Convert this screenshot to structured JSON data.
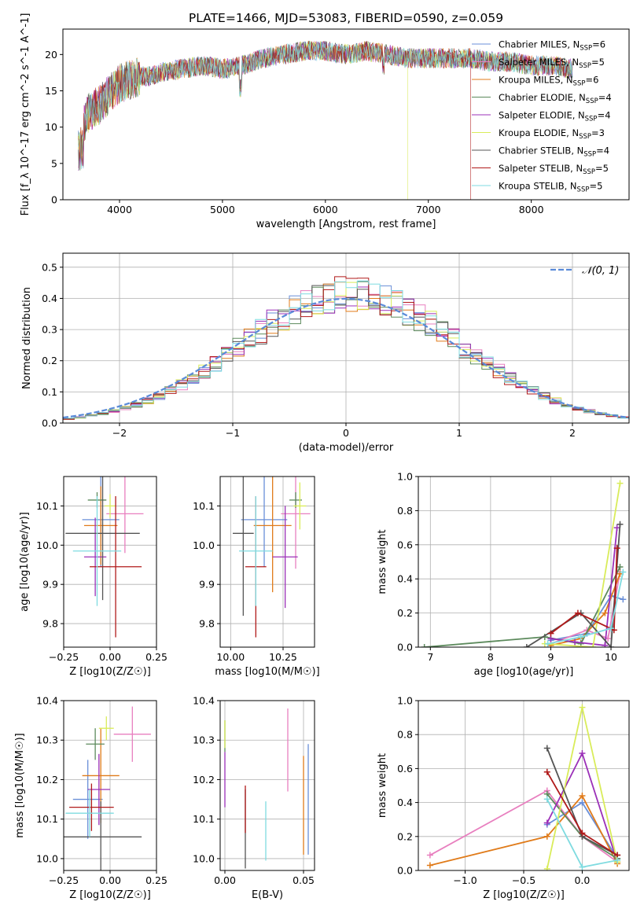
{
  "page_title": "PLATE=1466, MJD=53083, FIBERID=0590, z=0.059",
  "colors": {
    "Chabrier MILES": "#6a8fd8",
    "Salpeter MILES": "#e87fbf",
    "Kroupa MILES": "#e07b1a",
    "Chabrier ELODIE": "#5c8a5c",
    "Salpeter ELODIE": "#9b30b8",
    "Kroupa ELODIE": "#d9ec5a",
    "Chabrier STELIB": "#555555",
    "Salpeter STELIB": "#b01a1a",
    "Kroupa STELIB": "#7fdbe0"
  },
  "chart_data": [
    {
      "id": "spectrum",
      "type": "line",
      "title": "PLATE=1466, MJD=53083, FIBERID=0590, z=0.059",
      "xlabel": "wavelength [Angstrom, rest frame]",
      "ylabel": "Flux [f_λ 10^-17 erg cm^-2 s^-1 A^-1]",
      "xlim": [
        3450,
        8950
      ],
      "ylim": [
        0,
        23.5
      ],
      "xticks": [
        4000,
        5000,
        6000,
        7000,
        8000
      ],
      "yticks": [
        0,
        5,
        10,
        15,
        20
      ],
      "legend_position": "right",
      "legend": [
        {
          "label": "Chabrier MILES, N",
          "sub": "SSP",
          "suffix": "=6"
        },
        {
          "label": "Salpeter MILES, N",
          "sub": "SSP",
          "suffix": "=5"
        },
        {
          "label": "Kroupa MILES, N",
          "sub": "SSP",
          "suffix": "=6"
        },
        {
          "label": "Chabrier ELODIE, N",
          "sub": "SSP",
          "suffix": "=4"
        },
        {
          "label": "Salpeter ELODIE, N",
          "sub": "SSP",
          "suffix": "=4"
        },
        {
          "label": "Kroupa ELODIE, N",
          "sub": "SSP",
          "suffix": "=3"
        },
        {
          "label": "Chabrier STELIB, N",
          "sub": "SSP",
          "suffix": "=4"
        },
        {
          "label": "Salpeter STELIB, N",
          "sub": "SSP",
          "suffix": "=5"
        },
        {
          "label": "Kroupa STELIB, N",
          "sub": "SSP",
          "suffix": "=5"
        }
      ],
      "continuum": [
        [
          3600,
          9
        ],
        [
          3700,
          12
        ],
        [
          3800,
          13
        ],
        [
          3900,
          14.5
        ],
        [
          4000,
          16
        ],
        [
          4100,
          16.5
        ],
        [
          4200,
          17
        ],
        [
          4300,
          17
        ],
        [
          4400,
          17.5
        ],
        [
          4600,
          18
        ],
        [
          4800,
          18.5
        ],
        [
          5000,
          18
        ],
        [
          5200,
          18.5
        ],
        [
          5400,
          19.5
        ],
        [
          5600,
          20
        ],
        [
          5800,
          20.5
        ],
        [
          6000,
          20.5
        ],
        [
          6200,
          20
        ],
        [
          6400,
          20.5
        ],
        [
          6600,
          20
        ],
        [
          6800,
          19.5
        ],
        [
          7000,
          19.5
        ],
        [
          7200,
          19.5
        ],
        [
          7400,
          19.5
        ],
        [
          7600,
          19
        ],
        [
          7800,
          19
        ],
        [
          8000,
          18.5
        ],
        [
          8200,
          18.5
        ],
        [
          8400,
          18
        ]
      ]
    },
    {
      "id": "residuals",
      "type": "area",
      "xlabel": "(data-model)/error",
      "ylabel": "Normed distribution",
      "xlim": [
        -2.5,
        2.5
      ],
      "ylim": [
        0,
        0.545
      ],
      "xticks": [
        -2,
        -1,
        0,
        1,
        2
      ],
      "yticks": [
        0.0,
        0.1,
        0.2,
        0.3,
        0.4,
        0.5
      ],
      "grid": true,
      "legend": "𝒩(0, 1)",
      "legend_position": "top-right"
    },
    {
      "id": "age-vs-Z",
      "type": "scatter",
      "xlabel": "Z [log10(Z/Z☉)]",
      "ylabel": "age  [log10(age/yr)]",
      "xlim": [
        -0.25,
        0.25
      ],
      "ylim": [
        9.74,
        10.175
      ],
      "xticks": [
        -0.25,
        0.0,
        0.25
      ],
      "yticks": [
        9.8,
        9.9,
        10.0,
        10.1
      ],
      "grid": true,
      "points": [
        {
          "series": "Chabrier MILES",
          "x": -0.05,
          "y": 10.065,
          "xerr": 0.1,
          "yerr": 0.12
        },
        {
          "series": "Salpeter MILES",
          "x": 0.08,
          "y": 10.08,
          "xerr": 0.1,
          "yerr": 0.1
        },
        {
          "series": "Kroupa MILES",
          "x": -0.05,
          "y": 10.05,
          "xerr": 0.09,
          "yerr": 0.1
        },
        {
          "series": "Chabrier ELODIE",
          "x": -0.07,
          "y": 10.115,
          "xerr": 0.05,
          "yerr": 0.02
        },
        {
          "series": "Salpeter ELODIE",
          "x": -0.08,
          "y": 9.97,
          "xerr": 0.06,
          "yerr": 0.1
        },
        {
          "series": "Kroupa ELODIE",
          "x": 0.0,
          "y": 10.1,
          "xerr": 0.03,
          "yerr": 0.03
        },
        {
          "series": "Chabrier STELIB",
          "x": -0.04,
          "y": 10.03,
          "xerr": 0.2,
          "yerr": 0.17
        },
        {
          "series": "Salpeter STELIB",
          "x": 0.03,
          "y": 9.945,
          "xerr": 0.14,
          "yerr": 0.18
        },
        {
          "series": "Kroupa STELIB",
          "x": -0.07,
          "y": 9.985,
          "xerr": 0.13,
          "yerr": 0.14
        }
      ]
    },
    {
      "id": "age-vs-mass",
      "type": "scatter",
      "xlabel": "mass [log10(M/M☉)]",
      "ylabel": "",
      "xlim": [
        9.95,
        10.4
      ],
      "ylim": [
        9.74,
        10.175
      ],
      "xticks": [
        10.0,
        10.25
      ],
      "yticks": [
        9.8,
        9.9,
        10.0,
        10.1
      ],
      "grid": true,
      "points": [
        {
          "series": "Chabrier MILES",
          "x": 10.16,
          "y": 10.065,
          "xerr": 0.11,
          "yerr": 0.12
        },
        {
          "series": "Salpeter MILES",
          "x": 10.31,
          "y": 10.08,
          "xerr": 0.07,
          "yerr": 0.14
        },
        {
          "series": "Kroupa MILES",
          "x": 10.2,
          "y": 10.05,
          "xerr": 0.09,
          "yerr": 0.17
        },
        {
          "series": "Chabrier ELODIE",
          "x": 10.31,
          "y": 10.115,
          "xerr": 0.03,
          "yerr": 0.02
        },
        {
          "series": "Salpeter ELODIE",
          "x": 10.26,
          "y": 9.97,
          "xerr": 0.06,
          "yerr": 0.13
        },
        {
          "series": "Kroupa ELODIE",
          "x": 10.33,
          "y": 10.1,
          "xerr": 0.03,
          "yerr": 0.06
        },
        {
          "series": "Chabrier STELIB",
          "x": 10.06,
          "y": 10.03,
          "xerr": 0.05,
          "yerr": 0.21
        },
        {
          "series": "Salpeter STELIB",
          "x": 10.12,
          "y": 9.945,
          "xerr": 0.05,
          "yerr": 0.18
        },
        {
          "series": "Kroupa STELIB",
          "x": 10.12,
          "y": 9.985,
          "xerr": 0.08,
          "yerr": 0.14
        }
      ]
    },
    {
      "id": "weight-vs-age",
      "type": "line",
      "xlabel": "age  [log10(age/yr)]",
      "ylabel": "mass weight",
      "xlim": [
        6.8,
        10.3
      ],
      "ylim": [
        0,
        1.0
      ],
      "xticks": [
        7,
        8,
        9,
        10
      ],
      "yticks": [
        0.0,
        0.2,
        0.4,
        0.6,
        0.8,
        1.0
      ],
      "grid": true,
      "series": [
        {
          "name": "Chabrier MILES",
          "x": [
            9.0,
            9.6,
            10.0,
            10.2
          ],
          "y": [
            0.04,
            0.08,
            0.3,
            0.28
          ]
        },
        {
          "name": "Salpeter MILES",
          "x": [
            9.0,
            9.6,
            9.95,
            10.15
          ],
          "y": [
            0.02,
            0.1,
            0.05,
            0.44
          ]
        },
        {
          "name": "Kroupa MILES",
          "x": [
            9.0,
            9.5,
            9.9,
            10.15
          ],
          "y": [
            0.01,
            0.05,
            0.2,
            0.43
          ]
        },
        {
          "name": "Chabrier ELODIE",
          "x": [
            6.9,
            8.9,
            9.5,
            10.15
          ],
          "y": [
            0.0,
            0.06,
            0.02,
            0.47
          ]
        },
        {
          "name": "Salpeter ELODIE",
          "x": [
            9.0,
            9.4,
            9.9,
            10.1
          ],
          "y": [
            0.05,
            0.03,
            0.01,
            0.7
          ]
        },
        {
          "name": "Kroupa ELODIE",
          "x": [
            8.9,
            9.7,
            10.15
          ],
          "y": [
            0.02,
            0.0,
            0.96
          ]
        },
        {
          "name": "Chabrier STELIB",
          "x": [
            8.6,
            9.5,
            10.0,
            10.15
          ],
          "y": [
            0.0,
            0.2,
            0.0,
            0.72
          ]
        },
        {
          "name": "Salpeter STELIB",
          "x": [
            9.0,
            9.45,
            10.05,
            10.1
          ],
          "y": [
            0.08,
            0.2,
            0.1,
            0.58
          ]
        },
        {
          "name": "Kroupa STELIB",
          "x": [
            8.95,
            9.5,
            10.0,
            10.2
          ],
          "y": [
            0.02,
            0.06,
            0.11,
            0.44
          ]
        }
      ]
    },
    {
      "id": "mass-vs-Z",
      "type": "scatter",
      "xlabel": "Z [log10(Z/Z☉)]",
      "ylabel": "mass [log10(M/M☉)]",
      "xlim": [
        -0.25,
        0.25
      ],
      "ylim": [
        9.97,
        10.4
      ],
      "xticks": [
        -0.25,
        0.0,
        0.25
      ],
      "yticks": [
        10.0,
        10.1,
        10.2,
        10.3,
        10.4
      ],
      "grid": true,
      "points": [
        {
          "series": "Chabrier MILES",
          "x": -0.12,
          "y": 10.15,
          "xerr": 0.08,
          "yerr": 0.1
        },
        {
          "series": "Salpeter MILES",
          "x": 0.12,
          "y": 10.315,
          "xerr": 0.1,
          "yerr": 0.07
        },
        {
          "series": "Kroupa MILES",
          "x": -0.05,
          "y": 10.21,
          "xerr": 0.1,
          "yerr": 0.12
        },
        {
          "series": "Chabrier ELODIE",
          "x": -0.08,
          "y": 10.29,
          "xerr": 0.05,
          "yerr": 0.04
        },
        {
          "series": "Salpeter ELODIE",
          "x": -0.06,
          "y": 10.175,
          "xerr": 0.06,
          "yerr": 0.09
        },
        {
          "series": "Kroupa ELODIE",
          "x": -0.02,
          "y": 10.33,
          "xerr": 0.04,
          "yerr": 0.03
        },
        {
          "series": "Chabrier STELIB",
          "x": -0.05,
          "y": 10.055,
          "xerr": 0.22,
          "yerr": 0.09
        },
        {
          "series": "Salpeter STELIB",
          "x": -0.1,
          "y": 10.13,
          "xerr": 0.12,
          "yerr": 0.06
        },
        {
          "series": "Kroupa STELIB",
          "x": -0.11,
          "y": 10.115,
          "xerr": 0.13,
          "yerr": 0.06
        }
      ]
    },
    {
      "id": "mass-vs-ebv",
      "type": "scatter",
      "xlabel": "E(B-V)",
      "ylabel": "",
      "xlim": [
        -0.003,
        0.057
      ],
      "ylim": [
        9.97,
        10.4
      ],
      "xticks": [
        0.0,
        0.05
      ],
      "yticks": [
        10.0,
        10.1,
        10.2,
        10.3,
        10.4
      ],
      "grid": true,
      "points": [
        {
          "series": "Chabrier MILES",
          "x": 0.053,
          "y": 10.15,
          "xerr": 0.0,
          "yerr": 0.14
        },
        {
          "series": "Salpeter MILES",
          "x": 0.04,
          "y": 10.275,
          "xerr": 0.0,
          "yerr": 0.105
        },
        {
          "series": "Kroupa MILES",
          "x": 0.05,
          "y": 10.135,
          "xerr": 0.0,
          "yerr": 0.125
        },
        {
          "series": "Chabrier ELODIE",
          "x": 0.0,
          "y": 10.31,
          "xerr": 0.0,
          "yerr": 0.04
        },
        {
          "series": "Salpeter ELODIE",
          "x": 0.0,
          "y": 10.2,
          "xerr": 0.0,
          "yerr": 0.07
        },
        {
          "series": "Kroupa ELODIE",
          "x": 0.0,
          "y": 10.315,
          "xerr": 0.0,
          "yerr": 0.035
        },
        {
          "series": "Chabrier STELIB",
          "x": 0.013,
          "y": 10.075,
          "xerr": 0.0,
          "yerr": 0.1
        },
        {
          "series": "Salpeter STELIB",
          "x": 0.013,
          "y": 10.125,
          "xerr": 0.0,
          "yerr": 0.06
        },
        {
          "series": "Kroupa STELIB",
          "x": 0.026,
          "y": 10.07,
          "xerr": 0.0,
          "yerr": 0.075
        }
      ]
    },
    {
      "id": "weight-vs-Z",
      "type": "line",
      "xlabel": "Z [log10(Z/Z☉)]",
      "ylabel": "mass weight",
      "xlim": [
        -1.4,
        0.4
      ],
      "ylim": [
        0,
        1.0
      ],
      "xticks": [
        -1.0,
        -0.5,
        0.0
      ],
      "yticks": [
        0.0,
        0.2,
        0.4,
        0.6,
        0.8,
        1.0
      ],
      "grid": true,
      "series": [
        {
          "name": "Chabrier MILES",
          "x": [
            -0.3,
            0.0,
            0.3
          ],
          "y": [
            0.27,
            0.4,
            0.07
          ]
        },
        {
          "name": "Salpeter MILES",
          "x": [
            -1.3,
            -0.3,
            0.0,
            0.3
          ],
          "y": [
            0.09,
            0.47,
            0.2,
            0.05
          ]
        },
        {
          "name": "Kroupa MILES",
          "x": [
            -1.3,
            -0.3,
            0.0,
            0.3
          ],
          "y": [
            0.03,
            0.2,
            0.44,
            0.04
          ]
        },
        {
          "name": "Chabrier ELODIE",
          "x": [
            -0.3,
            0.0,
            0.3
          ],
          "y": [
            0.45,
            0.2,
            0.07
          ]
        },
        {
          "name": "Salpeter ELODIE",
          "x": [
            -0.3,
            0.0,
            0.3
          ],
          "y": [
            0.28,
            0.69,
            0.05
          ]
        },
        {
          "name": "Kroupa ELODIE",
          "x": [
            -0.3,
            0.0,
            0.3
          ],
          "y": [
            0.01,
            0.96,
            0.05
          ]
        },
        {
          "name": "Chabrier STELIB",
          "x": [
            -0.3,
            0.0,
            0.3
          ],
          "y": [
            0.72,
            0.2,
            0.09
          ]
        },
        {
          "name": "Salpeter STELIB",
          "x": [
            -0.3,
            0.0,
            0.3
          ],
          "y": [
            0.58,
            0.22,
            0.09
          ]
        },
        {
          "name": "Kroupa STELIB",
          "x": [
            -0.3,
            0.0,
            0.3
          ],
          "y": [
            0.42,
            0.02,
            0.06
          ]
        }
      ]
    }
  ]
}
